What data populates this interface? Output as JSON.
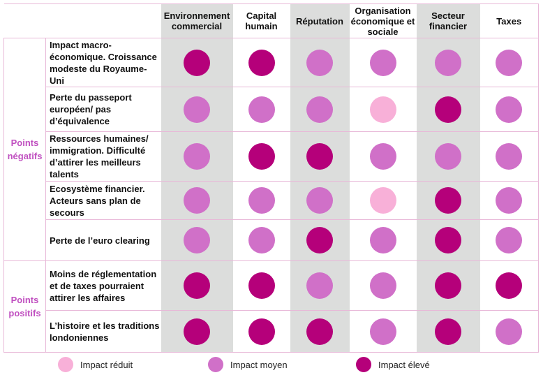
{
  "chart_data": {
    "type": "table",
    "columns": [
      "Environnement commercial",
      "Capital humain",
      "Réputation",
      "Organisation économique et sociale",
      "Secteur financier",
      "Taxes"
    ],
    "groups": [
      {
        "label": "Points négatifs",
        "rows": [
          {
            "label": "Impact macro-économique. Croissance modeste du Royaume-Uni",
            "values": [
              "élevé",
              "élevé",
              "moyen",
              "moyen",
              "moyen",
              "moyen"
            ]
          },
          {
            "label": "Perte du passeport européen/ pas d’équivalence",
            "values": [
              "moyen",
              "moyen",
              "moyen",
              "réduit",
              "élevé",
              "moyen"
            ]
          },
          {
            "label": "Ressources humaines/ immigration. Difficulté d’attirer les meilleurs talents",
            "values": [
              "moyen",
              "élevé",
              "élevé",
              "moyen",
              "moyen",
              "moyen"
            ]
          },
          {
            "label": "Ecosystème financier. Acteurs sans plan de secours",
            "values": [
              "moyen",
              "moyen",
              "moyen",
              "réduit",
              "élevé",
              "moyen"
            ]
          },
          {
            "label": "Perte de l’euro clearing",
            "values": [
              "moyen",
              "moyen",
              "élevé",
              "moyen",
              "élevé",
              "moyen"
            ]
          }
        ]
      },
      {
        "label": "Points positifs",
        "rows": [
          {
            "label": "Moins de réglementation et de taxes pourraient attirer les affaires",
            "values": [
              "élevé",
              "élevé",
              "moyen",
              "moyen",
              "élevé",
              "élevé"
            ]
          },
          {
            "label": "L’histoire et les traditions londoniennes",
            "values": [
              "élevé",
              "élevé",
              "élevé",
              "moyen",
              "élevé",
              "moyen"
            ]
          }
        ]
      }
    ],
    "legend": [
      {
        "key": "réduit",
        "label": "Impact réduit",
        "color": "#f8b0d8"
      },
      {
        "key": "moyen",
        "label": "Impact moyen",
        "color": "#d070c8"
      },
      {
        "key": "élevé",
        "label": "Impact élevé",
        "color": "#b5007a"
      }
    ]
  }
}
